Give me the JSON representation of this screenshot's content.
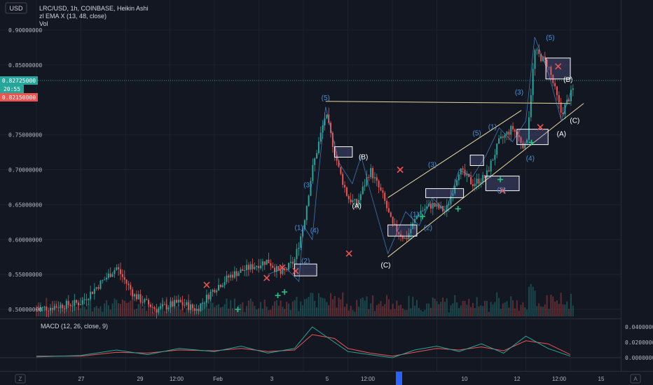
{
  "header": {
    "currency_button": "USD",
    "symbol_line": "LRC/USD, 1h, COINBASE, Heikin Ashi",
    "indicator_line": "zl EMA X (13, 48, close)",
    "volume_label": "Vol",
    "macd_label": "MACD (12, 26, close, 9)"
  },
  "price_axis": {
    "ticks": [
      "0.90000000",
      "0.85000000",
      "0.75000000",
      "0.70000000",
      "0.65000000",
      "0.60000000",
      "0.55000000",
      "0.50000000"
    ],
    "tick_values": [
      0.9,
      0.85,
      0.75,
      0.7,
      0.65,
      0.6,
      0.55,
      0.5
    ],
    "last_price": "0.82725000",
    "countdown": "20:55",
    "open_price": "0.82150000"
  },
  "macd_axis": {
    "ticks": [
      "0.04000000",
      "0.02000000",
      "0.00000000"
    ],
    "tick_values": [
      0.04,
      0.02,
      0.0
    ]
  },
  "time_axis": {
    "labels": [
      "27",
      "29",
      "12:00",
      "Feb",
      "3",
      "5",
      "12:00",
      "8",
      "10",
      "12",
      "12:00",
      "15"
    ],
    "positions": [
      0.0,
      2.0,
      3.0,
      4.0,
      5.0,
      6.0,
      7.0,
      8.0,
      9.0,
      10.0,
      11.0,
      12.0
    ]
  },
  "footer": {
    "zoom_icon": "Z",
    "auto_label": "A"
  },
  "colors": {
    "background": "#131722",
    "up": "#26a69a",
    "down": "#ef5350",
    "macd_line": "#26a69a",
    "signal_line": "#ef5350",
    "wave_lines": "#4a90d9",
    "trend_lines": "#e8d9a0",
    "buy_marker": "#26c281",
    "sell_marker": "#ef5350"
  },
  "chart_data": {
    "type": "line",
    "title": "LRC/USD, 1h, COINBASE, Heikin Ashi",
    "ylim": [
      0.49,
      0.91
    ],
    "price_path": {
      "x": [
        0,
        1,
        1.8,
        2.2,
        2.7,
        3.2,
        3.6,
        4.0,
        4.4,
        4.8,
        5.2,
        5.5,
        5.8,
        6.0,
        6.2,
        6.5,
        6.8,
        7.0,
        7.2,
        7.5,
        7.8,
        8.0,
        8.3,
        8.6,
        8.9,
        9.2,
        9.5,
        9.8,
        10.1,
        10.4,
        10.7,
        11.0,
        11.2,
        11.5,
        11.8,
        12.1
      ],
      "y": [
        0.5,
        0.51,
        0.56,
        0.52,
        0.5,
        0.51,
        0.5,
        0.53,
        0.55,
        0.56,
        0.57,
        0.55,
        0.57,
        0.62,
        0.7,
        0.78,
        0.7,
        0.66,
        0.65,
        0.7,
        0.66,
        0.62,
        0.6,
        0.64,
        0.65,
        0.64,
        0.7,
        0.68,
        0.69,
        0.74,
        0.76,
        0.73,
        0.87,
        0.85,
        0.78,
        0.82
      ]
    },
    "wave_labels": [
      "(1)",
      "(2)",
      "(3)",
      "(4)",
      "(5)",
      "(A)",
      "(B)",
      "(C)",
      "(1)",
      "(2)",
      "(3)",
      "(5)",
      "(1)",
      "(2)",
      "(3)",
      "(4)",
      "(5)",
      "(A)",
      "(B)",
      "(C)"
    ],
    "macd": {
      "x": [
        0,
        1,
        1.8,
        2.5,
        3.2,
        4.0,
        4.6,
        5.2,
        5.8,
        6.2,
        6.7,
        7.0,
        7.5,
        8.0,
        8.5,
        9.0,
        9.5,
        10.0,
        10.5,
        11.0,
        11.5,
        12.0
      ],
      "macd": [
        0.001,
        0.003,
        0.01,
        0.004,
        0.012,
        0.008,
        0.015,
        0.006,
        0.012,
        0.04,
        0.02,
        0.008,
        0.004,
        0.0,
        0.01,
        0.015,
        0.008,
        0.018,
        0.006,
        0.028,
        0.012,
        0.002
      ],
      "signal": [
        0.002,
        0.002,
        0.007,
        0.006,
        0.01,
        0.009,
        0.012,
        0.008,
        0.01,
        0.03,
        0.025,
        0.012,
        0.006,
        0.002,
        0.007,
        0.012,
        0.01,
        0.014,
        0.009,
        0.022,
        0.018,
        0.004
      ]
    }
  }
}
